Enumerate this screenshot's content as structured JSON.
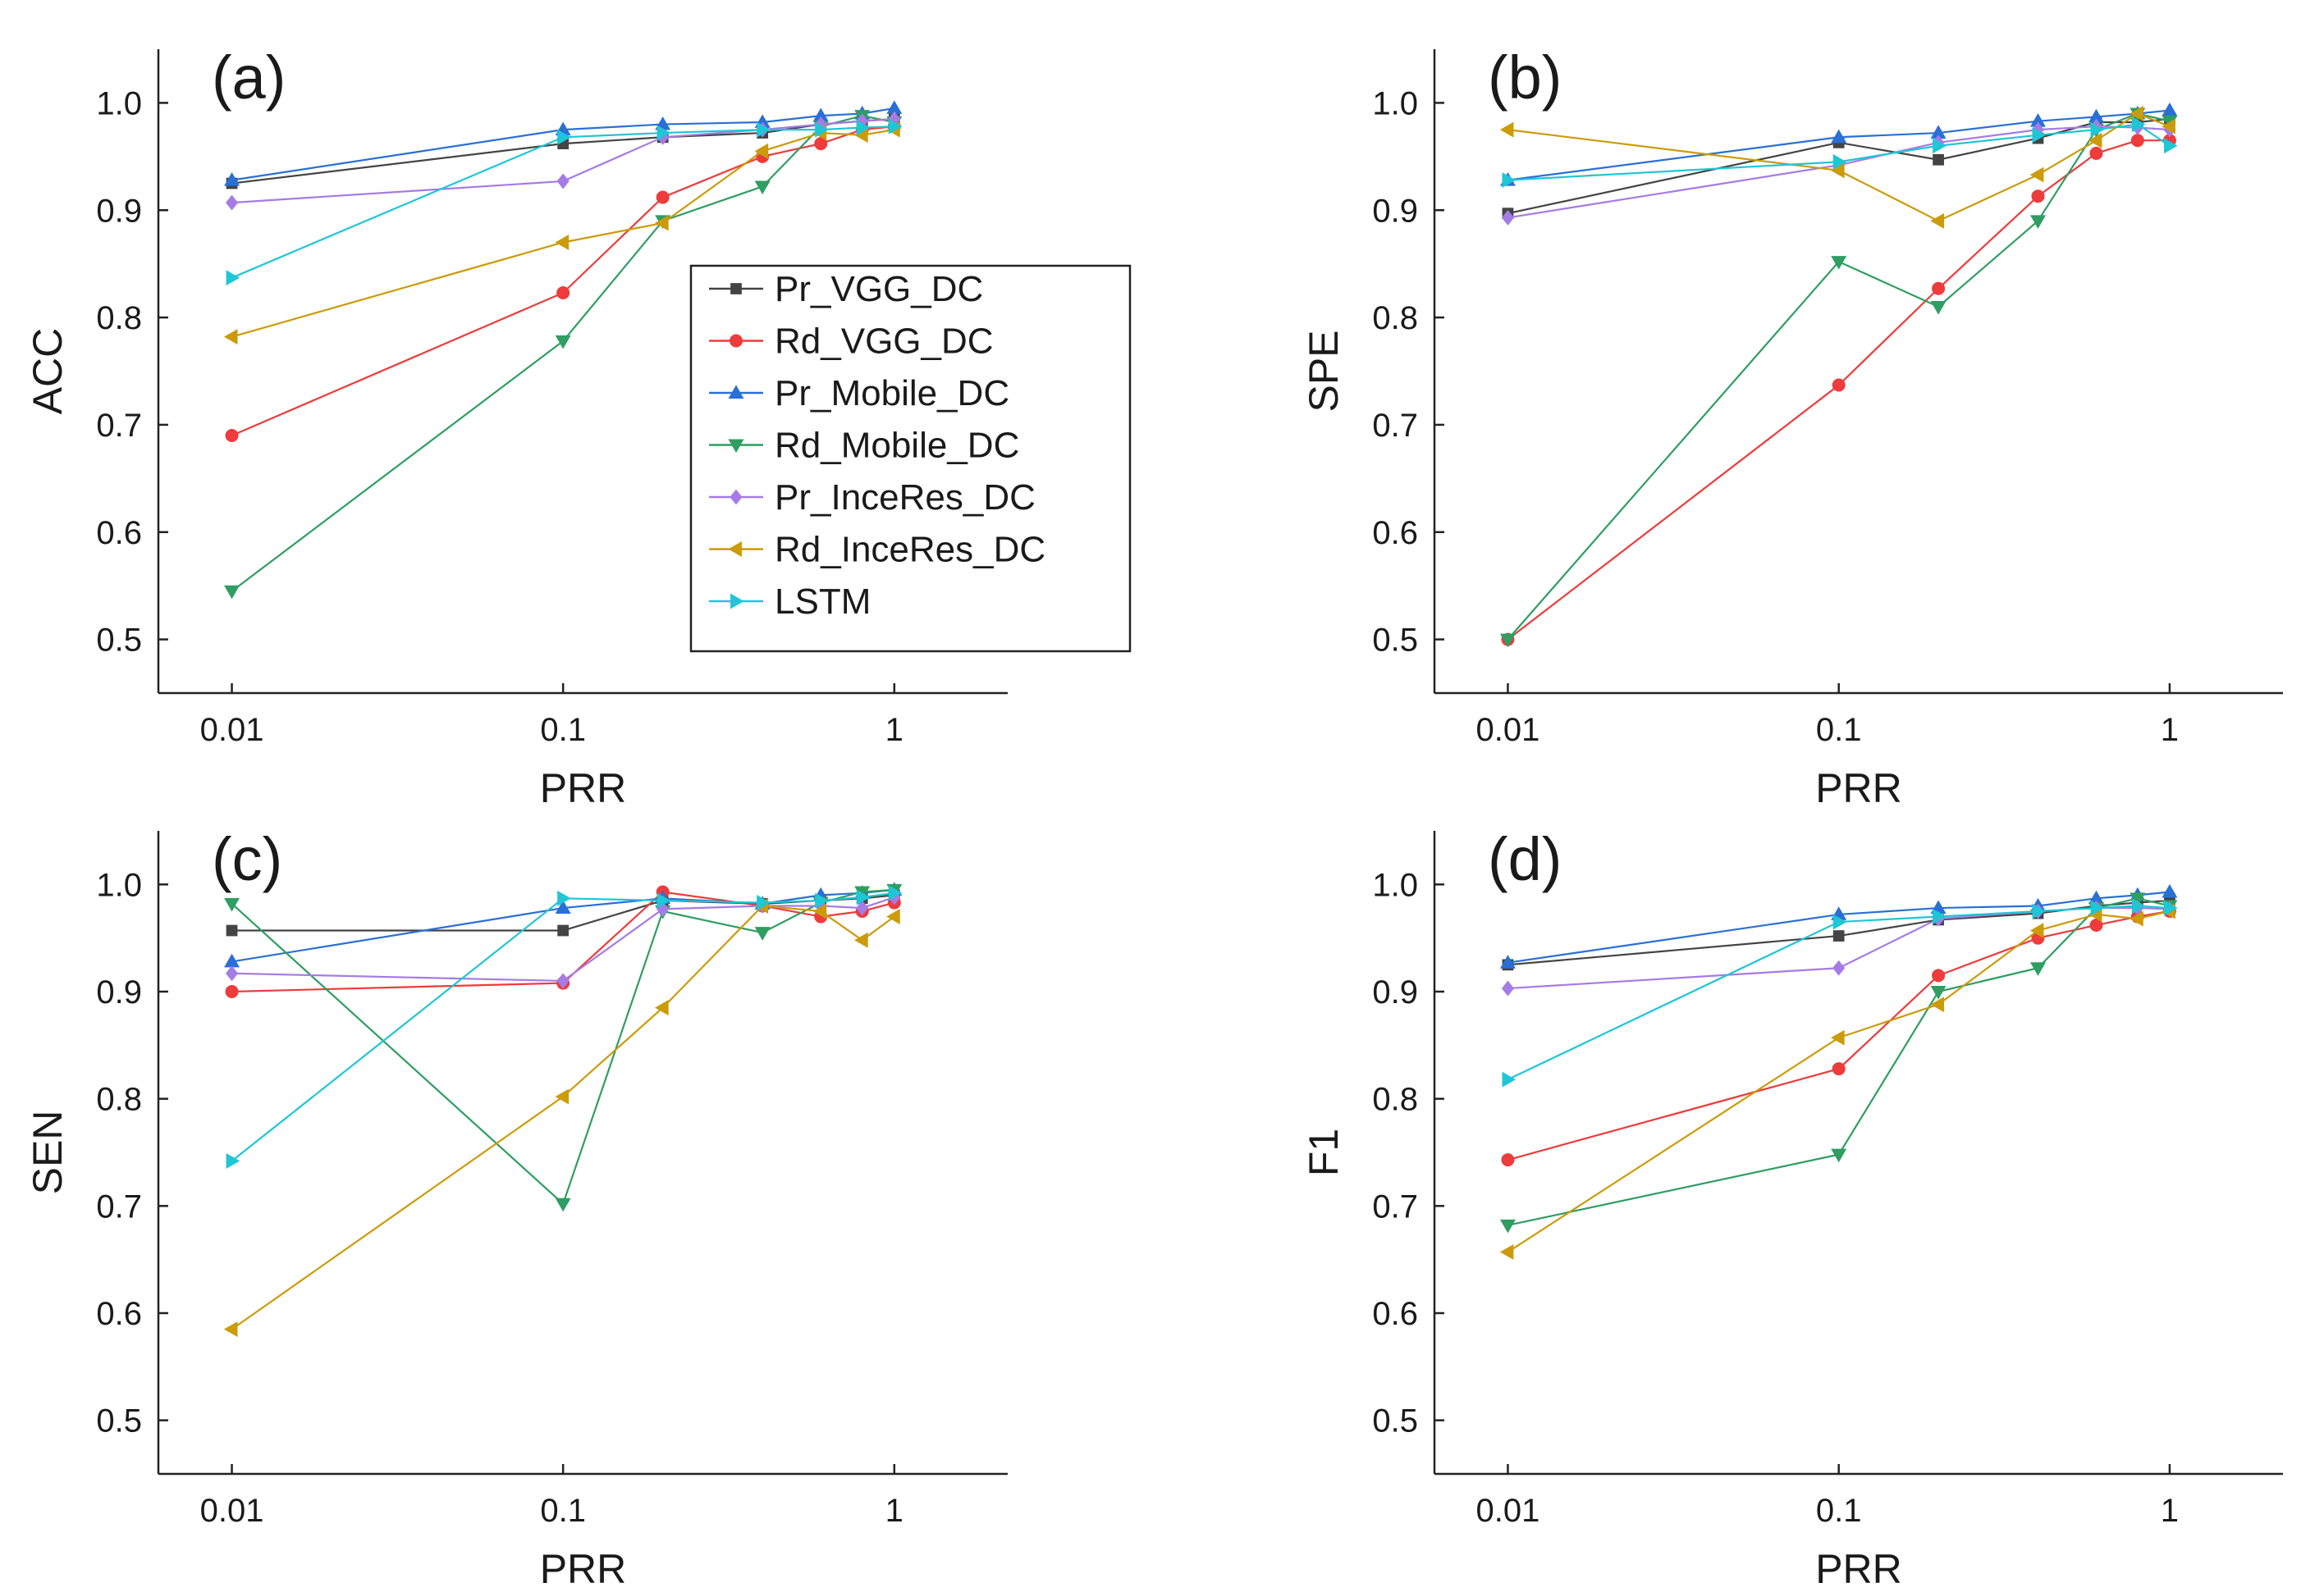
{
  "legend_entries": [
    "Pr_VGG_DC",
    "Rd_VGG_DC",
    "Pr_Mobile_DC",
    "Rd_Mobile_DC",
    "Pr_InceRes_DC",
    "Rd_InceRes_DC",
    "LSTM"
  ],
  "series_style": [
    {
      "name": "Pr_VGG_DC",
      "color": "#444444",
      "marker": "square"
    },
    {
      "name": "Rd_VGG_DC",
      "color": "#ee3b3b",
      "marker": "circle"
    },
    {
      "name": "Pr_Mobile_DC",
      "color": "#2a6fd6",
      "marker": "triangle-up"
    },
    {
      "name": "Rd_Mobile_DC",
      "color": "#2e9e62",
      "marker": "triangle-down"
    },
    {
      "name": "Pr_InceRes_DC",
      "color": "#a57be6",
      "marker": "diamond"
    },
    {
      "name": "Rd_InceRes_DC",
      "color": "#cc9b0a",
      "marker": "triangle-left"
    },
    {
      "name": "LSTM",
      "color": "#1fc6d6",
      "marker": "triangle-right"
    }
  ],
  "chart_data": [
    {
      "type": "line",
      "panel_label": "(a)",
      "xlabel": "PRR",
      "ylabel": "ACC",
      "x_scale": "log",
      "xlim": [
        0.006,
        2.2
      ],
      "ylim": [
        0.45,
        1.05
      ],
      "xticks": [
        0.01,
        0.1,
        1
      ],
      "xtick_labels": [
        "0.01",
        "0.1",
        "1"
      ],
      "yticks": [
        0.5,
        0.6,
        0.7,
        0.8,
        0.9,
        1.0
      ],
      "ytick_labels": [
        "0.5",
        "0.6",
        "0.7",
        "0.8",
        "0.9",
        "1.0"
      ],
      "legend": "center-right",
      "x": [
        0.01,
        0.1,
        0.2,
        0.4,
        0.6,
        0.8,
        1
      ],
      "series": [
        {
          "name": "Pr_VGG_DC",
          "values": [
            0.925,
            0.962,
            0.968,
            0.972,
            0.98,
            0.983,
            0.985
          ]
        },
        {
          "name": "Rd_VGG_DC",
          "values": [
            0.69,
            0.823,
            0.912,
            0.95,
            0.962,
            0.975,
            0.978
          ]
        },
        {
          "name": "Pr_Mobile_DC",
          "values": [
            0.928,
            0.975,
            0.98,
            0.982,
            0.988,
            0.99,
            0.995
          ]
        },
        {
          "name": "Rd_Mobile_DC",
          "values": [
            0.545,
            0.778,
            0.89,
            0.922,
            0.978,
            0.988,
            0.982
          ]
        },
        {
          "name": "Pr_InceRes_DC",
          "values": [
            0.907,
            0.927,
            0.968,
            0.975,
            0.98,
            0.983,
            0.985
          ]
        },
        {
          "name": "Rd_InceRes_DC",
          "values": [
            0.782,
            0.87,
            0.888,
            0.955,
            0.972,
            0.97,
            0.975
          ]
        },
        {
          "name": "LSTM",
          "values": [
            0.837,
            0.968,
            0.972,
            0.975,
            0.975,
            0.977,
            0.978
          ]
        }
      ]
    },
    {
      "type": "line",
      "panel_label": "(b)",
      "xlabel": "PRR",
      "ylabel": "SPE",
      "x_scale": "log",
      "xlim": [
        0.006,
        2.2
      ],
      "ylim": [
        0.45,
        1.05
      ],
      "xticks": [
        0.01,
        0.1,
        1
      ],
      "xtick_labels": [
        "0.01",
        "0.1",
        "1"
      ],
      "yticks": [
        0.5,
        0.6,
        0.7,
        0.8,
        0.9,
        1.0
      ],
      "ytick_labels": [
        "0.5",
        "0.6",
        "0.7",
        "0.8",
        "0.9",
        "1.0"
      ],
      "x": [
        0.01,
        0.1,
        0.2,
        0.4,
        0.6,
        0.8,
        1
      ],
      "series": [
        {
          "name": "Pr_VGG_DC",
          "values": [
            0.897,
            0.963,
            0.947,
            0.967,
            0.982,
            0.982,
            0.985
          ]
        },
        {
          "name": "Rd_VGG_DC",
          "values": [
            0.5,
            0.737,
            0.827,
            0.913,
            0.953,
            0.965,
            0.965
          ]
        },
        {
          "name": "Pr_Mobile_DC",
          "values": [
            0.928,
            0.968,
            0.972,
            0.983,
            0.987,
            0.99,
            0.993
          ]
        },
        {
          "name": "Rd_Mobile_DC",
          "values": [
            0.5,
            0.852,
            0.81,
            0.89,
            0.975,
            0.99,
            0.983
          ]
        },
        {
          "name": "Pr_InceRes_DC",
          "values": [
            0.893,
            0.942,
            0.963,
            0.975,
            0.978,
            0.977,
            0.975
          ]
        },
        {
          "name": "Rd_InceRes_DC",
          "values": [
            0.975,
            0.937,
            0.89,
            0.933,
            0.965,
            0.99,
            0.978
          ]
        },
        {
          "name": "LSTM",
          "values": [
            0.928,
            0.945,
            0.96,
            0.97,
            0.975,
            0.98,
            0.96
          ]
        }
      ]
    },
    {
      "type": "line",
      "panel_label": "(c)",
      "xlabel": "PRR",
      "ylabel": "SEN",
      "x_scale": "log",
      "xlim": [
        0.006,
        2.2
      ],
      "ylim": [
        0.45,
        1.05
      ],
      "xticks": [
        0.01,
        0.1,
        1
      ],
      "xtick_labels": [
        "0.01",
        "0.1",
        "1"
      ],
      "yticks": [
        0.5,
        0.6,
        0.7,
        0.8,
        0.9,
        1.0
      ],
      "ytick_labels": [
        "0.5",
        "0.6",
        "0.7",
        "0.8",
        "0.9",
        "1.0"
      ],
      "x": [
        0.01,
        0.1,
        0.2,
        0.4,
        0.6,
        0.8,
        1
      ],
      "series": [
        {
          "name": "Pr_VGG_DC",
          "values": [
            0.957,
            0.957,
            0.985,
            0.982,
            0.985,
            0.987,
            0.99
          ]
        },
        {
          "name": "Rd_VGG_DC",
          "values": [
            0.9,
            0.908,
            0.993,
            0.98,
            0.97,
            0.975,
            0.983
          ]
        },
        {
          "name": "Pr_Mobile_DC",
          "values": [
            0.928,
            0.978,
            0.987,
            0.982,
            0.99,
            0.992,
            0.995
          ]
        },
        {
          "name": "Rd_Mobile_DC",
          "values": [
            0.982,
            0.702,
            0.975,
            0.955,
            0.983,
            0.993,
            0.995
          ]
        },
        {
          "name": "Pr_InceRes_DC",
          "values": [
            0.917,
            0.91,
            0.977,
            0.98,
            0.98,
            0.978,
            0.988
          ]
        },
        {
          "name": "Rd_InceRes_DC",
          "values": [
            0.585,
            0.802,
            0.885,
            0.98,
            0.975,
            0.948,
            0.97
          ]
        },
        {
          "name": "LSTM",
          "values": [
            0.742,
            0.987,
            0.985,
            0.983,
            0.985,
            0.988,
            0.992
          ]
        }
      ]
    },
    {
      "type": "line",
      "panel_label": "(d)",
      "xlabel": "PRR",
      "ylabel": "F1",
      "x_scale": "log",
      "xlim": [
        0.006,
        2.2
      ],
      "ylim": [
        0.45,
        1.05
      ],
      "xticks": [
        0.01,
        0.1,
        1
      ],
      "xtick_labels": [
        "0.01",
        "0.1",
        "1"
      ],
      "yticks": [
        0.5,
        0.6,
        0.7,
        0.8,
        0.9,
        1.0
      ],
      "ytick_labels": [
        "0.5",
        "0.6",
        "0.7",
        "0.8",
        "0.9",
        "1.0"
      ],
      "x": [
        0.01,
        0.1,
        0.2,
        0.4,
        0.6,
        0.8,
        1
      ],
      "series": [
        {
          "name": "Pr_VGG_DC",
          "values": [
            0.925,
            0.952,
            0.967,
            0.973,
            0.98,
            0.983,
            0.985
          ]
        },
        {
          "name": "Rd_VGG_DC",
          "values": [
            0.743,
            0.828,
            0.915,
            0.95,
            0.962,
            0.97,
            0.975
          ]
        },
        {
          "name": "Pr_Mobile_DC",
          "values": [
            0.927,
            0.972,
            0.978,
            0.98,
            0.987,
            0.99,
            0.993
          ]
        },
        {
          "name": "Rd_Mobile_DC",
          "values": [
            0.682,
            0.748,
            0.9,
            0.922,
            0.978,
            0.987,
            0.98
          ]
        },
        {
          "name": "Pr_InceRes_DC",
          "values": [
            0.903,
            0.922,
            0.968,
            0.975,
            0.978,
            0.978,
            0.977
          ]
        },
        {
          "name": "Rd_InceRes_DC",
          "values": [
            0.657,
            0.857,
            0.888,
            0.957,
            0.972,
            0.968,
            0.975
          ]
        },
        {
          "name": "LSTM",
          "values": [
            0.818,
            0.965,
            0.97,
            0.975,
            0.978,
            0.98,
            0.978
          ]
        }
      ]
    }
  ]
}
